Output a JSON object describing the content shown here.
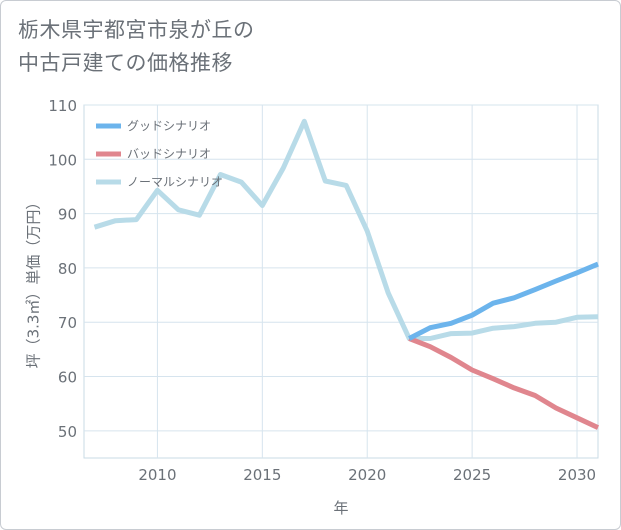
{
  "title": {
    "line1": "栃木県宇都宮市泉が丘の",
    "line2": "中古戸建ての価格推移"
  },
  "chart_data": {
    "type": "line",
    "title": "栃木県宇都宮市泉が丘の中古戸建ての価格推移",
    "xlabel": "年",
    "ylabel": "坪（3.3㎡）単価（万円）",
    "xlim": [
      2006.5,
      2031
    ],
    "ylim": [
      45,
      110
    ],
    "xticks": [
      2010,
      2015,
      2020,
      2025,
      2030
    ],
    "yticks": [
      50,
      60,
      70,
      80,
      90,
      100,
      110
    ],
    "grid": true,
    "legend_position": "top-left",
    "series": [
      {
        "name": "グッドシナリオ",
        "color": "#6cb4ec",
        "x": [
          2022,
          2023,
          2024,
          2025,
          2026,
          2027,
          2028,
          2029,
          2030,
          2031
        ],
        "values": [
          67,
          69,
          69.8,
          71.3,
          73.5,
          74.5,
          76,
          77.6,
          79.1,
          80.7
        ]
      },
      {
        "name": "バッドシナリオ",
        "color": "#e0868e",
        "x": [
          2022,
          2023,
          2024,
          2025,
          2026,
          2027,
          2028,
          2029,
          2030,
          2031
        ],
        "values": [
          67,
          65.5,
          63.5,
          61.2,
          59.6,
          57.9,
          56.5,
          54.2,
          52.4,
          50.6
        ]
      },
      {
        "name": "ノーマルシナリオ",
        "color": "#b8dbe8",
        "x": [
          2007,
          2008,
          2009,
          2010,
          2011,
          2012,
          2013,
          2014,
          2015,
          2016,
          2017,
          2018,
          2019,
          2020,
          2021,
          2022,
          2023,
          2024,
          2025,
          2026,
          2027,
          2028,
          2029,
          2030,
          2031
        ],
        "values": [
          87.5,
          88.7,
          88.9,
          94.3,
          90.7,
          89.7,
          97.2,
          95.8,
          91.5,
          98.4,
          107,
          96,
          95.2,
          86.8,
          75.4,
          67,
          67,
          67.9,
          68,
          68.9,
          69.2,
          69.8,
          70,
          70.9,
          71
        ]
      }
    ]
  }
}
